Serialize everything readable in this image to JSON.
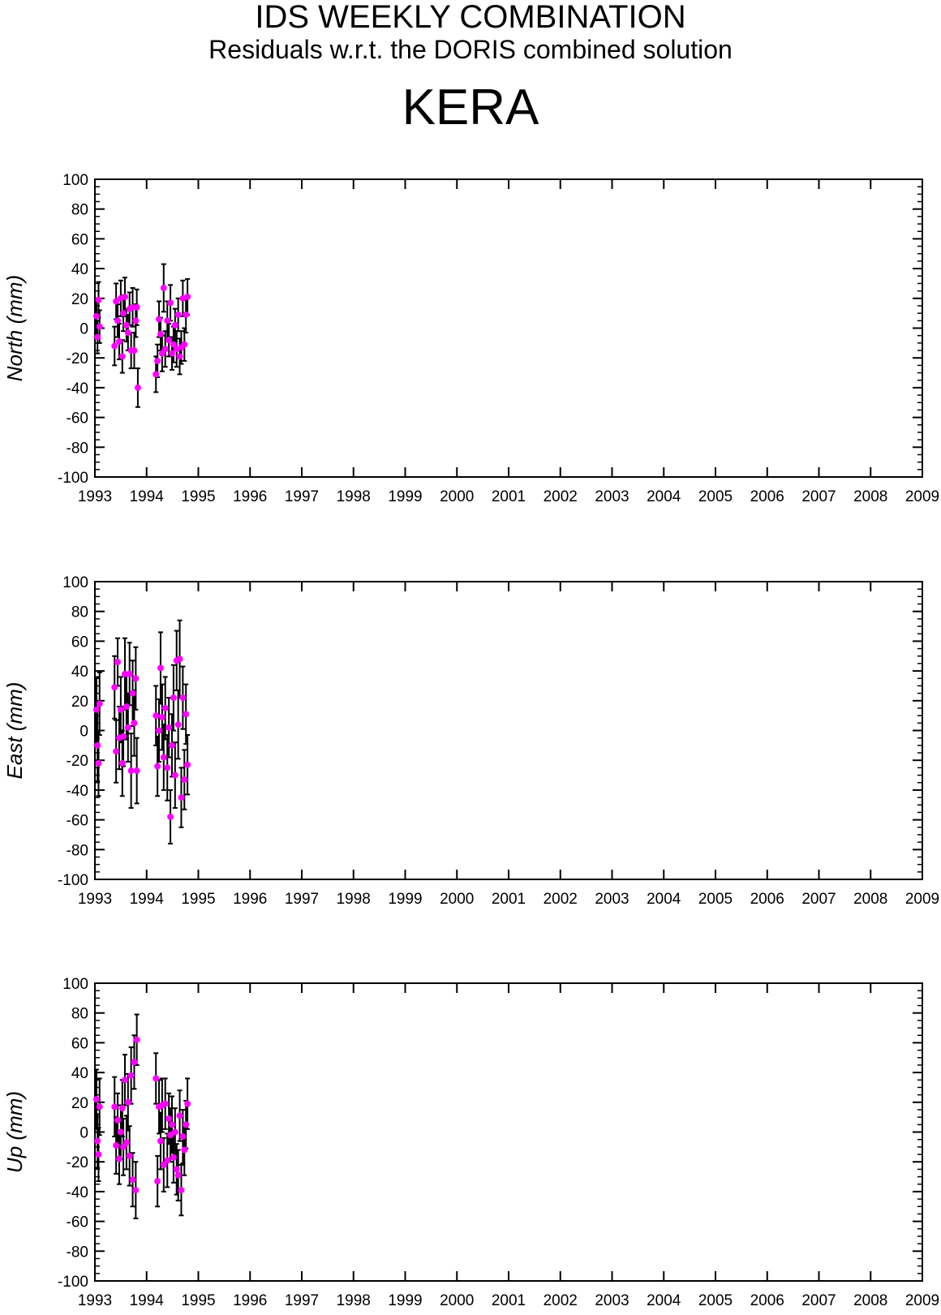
{
  "header": {
    "title": "IDS WEEKLY COMBINATION",
    "subtitle": "Residuals w.r.t. the DORIS combined solution",
    "station": "KERA"
  },
  "colors": {
    "point": "#ff00ff",
    "errorbar": "#000000",
    "axis": "#000000"
  },
  "chart_data": [
    {
      "type": "scatter",
      "ylabel": "North (mm)",
      "xlim": [
        1993,
        2009
      ],
      "ylim": [
        -100,
        100
      ],
      "xticks": [
        "1993",
        "1994",
        "1995",
        "1996",
        "1997",
        "1998",
        "1999",
        "2000",
        "2001",
        "2002",
        "2003",
        "2004",
        "2005",
        "2006",
        "2007",
        "2008",
        "2009"
      ],
      "yticks": [
        "100",
        "80",
        "60",
        "40",
        "20",
        "0",
        "-20",
        "-40",
        "-60",
        "-80",
        "-100"
      ],
      "grid": false,
      "points": [
        [
          1993.03,
          8,
          12
        ],
        [
          1993.05,
          -6,
          11
        ],
        [
          1993.07,
          19,
          12
        ],
        [
          1993.09,
          1,
          11
        ],
        [
          1993.38,
          -12,
          13
        ],
        [
          1993.41,
          18,
          12
        ],
        [
          1993.44,
          5,
          11
        ],
        [
          1993.47,
          -9,
          12
        ],
        [
          1993.5,
          20,
          12
        ],
        [
          1993.53,
          -19,
          11
        ],
        [
          1993.55,
          10,
          12
        ],
        [
          1993.58,
          21,
          13
        ],
        [
          1993.61,
          2,
          11
        ],
        [
          1993.64,
          -3,
          12
        ],
        [
          1993.67,
          13,
          11
        ],
        [
          1993.7,
          -15,
          12
        ],
        [
          1993.73,
          14,
          13
        ],
        [
          1993.76,
          -15,
          12
        ],
        [
          1993.79,
          5,
          11
        ],
        [
          1993.81,
          14,
          12
        ],
        [
          1993.83,
          -40,
          13
        ],
        [
          1994.18,
          -31,
          12
        ],
        [
          1994.21,
          -22,
          11
        ],
        [
          1994.24,
          6,
          12
        ],
        [
          1994.27,
          -4,
          11
        ],
        [
          1994.3,
          -17,
          12
        ],
        [
          1994.33,
          27,
          16
        ],
        [
          1994.36,
          -14,
          12
        ],
        [
          1994.4,
          5,
          13
        ],
        [
          1994.43,
          -8,
          11
        ],
        [
          1994.46,
          17,
          12
        ],
        [
          1994.49,
          -17,
          11
        ],
        [
          1994.52,
          -11,
          12
        ],
        [
          1994.55,
          2,
          11
        ],
        [
          1994.58,
          -14,
          12
        ],
        [
          1994.61,
          9,
          11
        ],
        [
          1994.64,
          -19,
          12
        ],
        [
          1994.67,
          -13,
          11
        ],
        [
          1994.7,
          20,
          12
        ],
        [
          1994.73,
          -11,
          11
        ],
        [
          1994.76,
          9,
          12
        ],
        [
          1994.79,
          21,
          12
        ]
      ]
    },
    {
      "type": "scatter",
      "ylabel": "East (mm)",
      "xlim": [
        1993,
        2009
      ],
      "ylim": [
        -100,
        100
      ],
      "xticks": [
        "1993",
        "1994",
        "1995",
        "1996",
        "1997",
        "1998",
        "1999",
        "2000",
        "2001",
        "2002",
        "2003",
        "2004",
        "2005",
        "2006",
        "2007",
        "2008",
        "2009"
      ],
      "yticks": [
        "100",
        "80",
        "60",
        "40",
        "20",
        "0",
        "-20",
        "-40",
        "-60",
        "-80",
        "-100"
      ],
      "grid": false,
      "points": [
        [
          1993.03,
          14,
          22
        ],
        [
          1993.05,
          -10,
          24
        ],
        [
          1993.07,
          -22,
          22
        ],
        [
          1993.09,
          18,
          21
        ],
        [
          1993.38,
          29,
          21
        ],
        [
          1993.41,
          -14,
          21
        ],
        [
          1993.44,
          46,
          16
        ],
        [
          1993.47,
          -5,
          21
        ],
        [
          1993.5,
          14,
          22
        ],
        [
          1993.53,
          -22,
          22
        ],
        [
          1993.55,
          -4,
          20
        ],
        [
          1993.58,
          38,
          24
        ],
        [
          1993.61,
          16,
          22
        ],
        [
          1993.64,
          2,
          23
        ],
        [
          1993.67,
          38,
          21
        ],
        [
          1993.7,
          -27,
          25
        ],
        [
          1993.73,
          25,
          22
        ],
        [
          1993.76,
          5,
          22
        ],
        [
          1993.79,
          35,
          21
        ],
        [
          1993.81,
          -27,
          22
        ],
        [
          1994.18,
          10,
          20
        ],
        [
          1994.21,
          -24,
          20
        ],
        [
          1994.24,
          0,
          21
        ],
        [
          1994.27,
          42,
          24
        ],
        [
          1994.3,
          9,
          22
        ],
        [
          1994.33,
          -18,
          22
        ],
        [
          1994.36,
          15,
          21
        ],
        [
          1994.4,
          -25,
          22
        ],
        [
          1994.43,
          2,
          20
        ],
        [
          1994.46,
          -58,
          18
        ],
        [
          1994.49,
          -10,
          21
        ],
        [
          1994.52,
          22,
          22
        ],
        [
          1994.55,
          -30,
          22
        ],
        [
          1994.58,
          47,
          20
        ],
        [
          1994.61,
          4,
          23
        ],
        [
          1994.64,
          48,
          26
        ],
        [
          1994.67,
          -45,
          20
        ],
        [
          1994.7,
          22,
          21
        ],
        [
          1994.73,
          -33,
          20
        ],
        [
          1994.76,
          11,
          20
        ],
        [
          1994.79,
          -23,
          20
        ]
      ]
    },
    {
      "type": "scatter",
      "ylabel": "Up (mm)",
      "xlim": [
        1993,
        2009
      ],
      "ylim": [
        -100,
        100
      ],
      "xticks": [
        "1993",
        "1994",
        "1995",
        "1996",
        "1997",
        "1998",
        "1999",
        "2000",
        "2001",
        "2002",
        "2003",
        "2004",
        "2005",
        "2006",
        "2007",
        "2008",
        "2009"
      ],
      "yticks": [
        "100",
        "80",
        "60",
        "40",
        "20",
        "0",
        "-20",
        "-40",
        "-60",
        "-80",
        "-100"
      ],
      "grid": false,
      "points": [
        [
          1993.03,
          22,
          20
        ],
        [
          1993.05,
          -6,
          18
        ],
        [
          1993.07,
          -15,
          18
        ],
        [
          1993.09,
          17,
          19
        ],
        [
          1993.38,
          17,
          20
        ],
        [
          1993.41,
          -9,
          19
        ],
        [
          1993.44,
          8,
          18
        ],
        [
          1993.47,
          -18,
          17
        ],
        [
          1993.5,
          0,
          18
        ],
        [
          1993.53,
          16,
          19
        ],
        [
          1993.55,
          -10,
          19
        ],
        [
          1993.58,
          35,
          17
        ],
        [
          1993.61,
          -7,
          18
        ],
        [
          1993.64,
          20,
          19
        ],
        [
          1993.67,
          -16,
          20
        ],
        [
          1993.7,
          38,
          19
        ],
        [
          1993.73,
          -32,
          18
        ],
        [
          1993.76,
          47,
          18
        ],
        [
          1993.79,
          -39,
          19
        ],
        [
          1993.81,
          62,
          17
        ],
        [
          1994.18,
          36,
          17
        ],
        [
          1994.21,
          -33,
          17
        ],
        [
          1994.24,
          17,
          18
        ],
        [
          1994.27,
          -6,
          19
        ],
        [
          1994.3,
          18,
          18
        ],
        [
          1994.33,
          -22,
          18
        ],
        [
          1994.36,
          19,
          17
        ],
        [
          1994.4,
          -19,
          18
        ],
        [
          1994.43,
          9,
          17
        ],
        [
          1994.46,
          -2,
          18
        ],
        [
          1994.49,
          5,
          19
        ],
        [
          1994.52,
          -17,
          17
        ],
        [
          1994.55,
          0,
          16
        ],
        [
          1994.58,
          -25,
          17
        ],
        [
          1994.61,
          -29,
          17
        ],
        [
          1994.64,
          11,
          17
        ],
        [
          1994.67,
          -39,
          17
        ],
        [
          1994.7,
          -3,
          18
        ],
        [
          1994.73,
          -12,
          17
        ],
        [
          1994.76,
          5,
          16
        ],
        [
          1994.79,
          19,
          17
        ]
      ]
    }
  ]
}
